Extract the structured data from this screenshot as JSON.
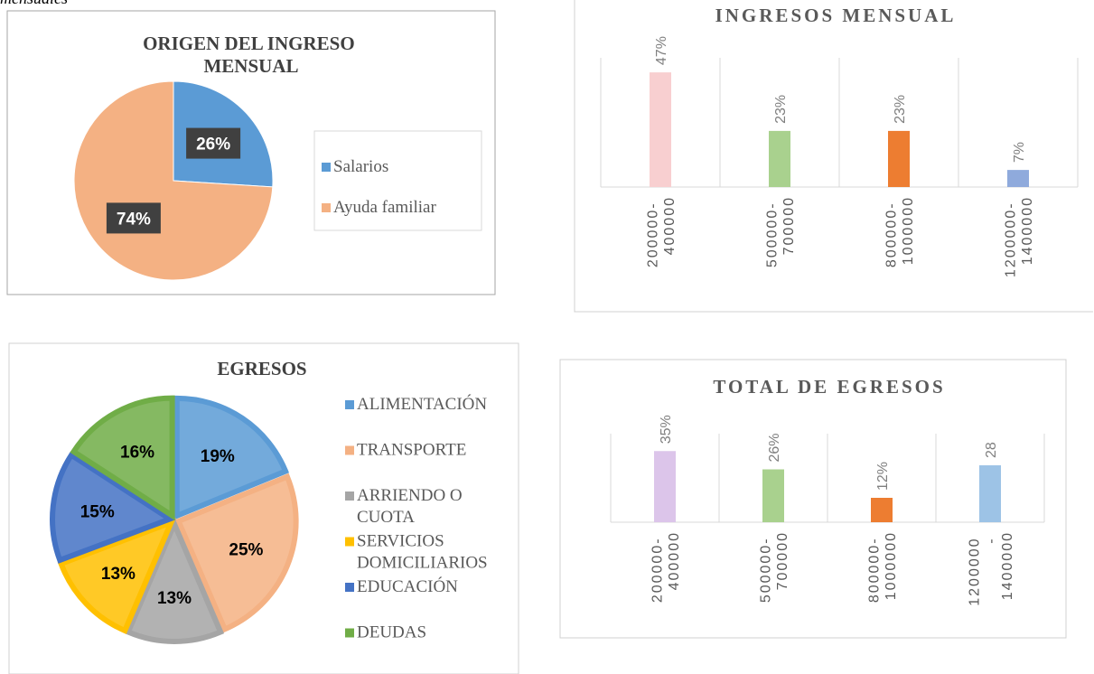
{
  "caption": "mensuales",
  "chart_data": [
    {
      "type": "pie",
      "title": "ORIGEN DEL INGRESO MENSUAL",
      "categories": [
        "Salarios",
        "Ayuda familiar"
      ],
      "values": [
        26,
        74
      ],
      "value_labels": [
        "26%",
        "74%"
      ],
      "colors": [
        "#5b9bd5",
        "#f4b183"
      ],
      "legend": "right"
    },
    {
      "type": "bar",
      "title": "INGRESOS MENSUAL",
      "categories": [
        "200000- 400000",
        "500000- 700000",
        "800000- 1000000",
        "1200000- 1400000"
      ],
      "values": [
        47,
        23,
        23,
        7
      ],
      "value_labels": [
        "47%",
        "23%",
        "23%",
        "7%"
      ],
      "colors": [
        "#f8cfd0",
        "#a9d18e",
        "#ed7d31",
        "#8faadc"
      ],
      "ylim": [
        0,
        50
      ]
    },
    {
      "type": "pie",
      "title": "EGRESOS",
      "categories": [
        "ALIMENTACIÓN",
        "TRANSPORTE",
        "ARRIENDO O CUOTA",
        "SERVICIOS DOMICILIARIOS",
        "EDUCACIÓN",
        "DEUDAS"
      ],
      "values": [
        19,
        25,
        13,
        13,
        15,
        16
      ],
      "value_labels": [
        "19%",
        "25%",
        "13%",
        "13%",
        "15%",
        "16%"
      ],
      "colors": [
        "#5b9bd5",
        "#f4b183",
        "#a5a5a5",
        "#ffc000",
        "#4472c4",
        "#70ad47"
      ],
      "legend": "right",
      "exploded": true
    },
    {
      "type": "bar",
      "title": "TOTAL DE EGRESOS",
      "categories": [
        "200000- 400000",
        "500000- 700000",
        "800000- 1000000",
        "1200000 - 1400000"
      ],
      "values": [
        35,
        26,
        12,
        28
      ],
      "value_labels": [
        "35%",
        "26%",
        "12%",
        "28"
      ],
      "colors": [
        "#dcc5ea",
        "#a9d18e",
        "#ed7d31",
        "#9dc3e6"
      ],
      "ylim": [
        0,
        40
      ]
    }
  ]
}
